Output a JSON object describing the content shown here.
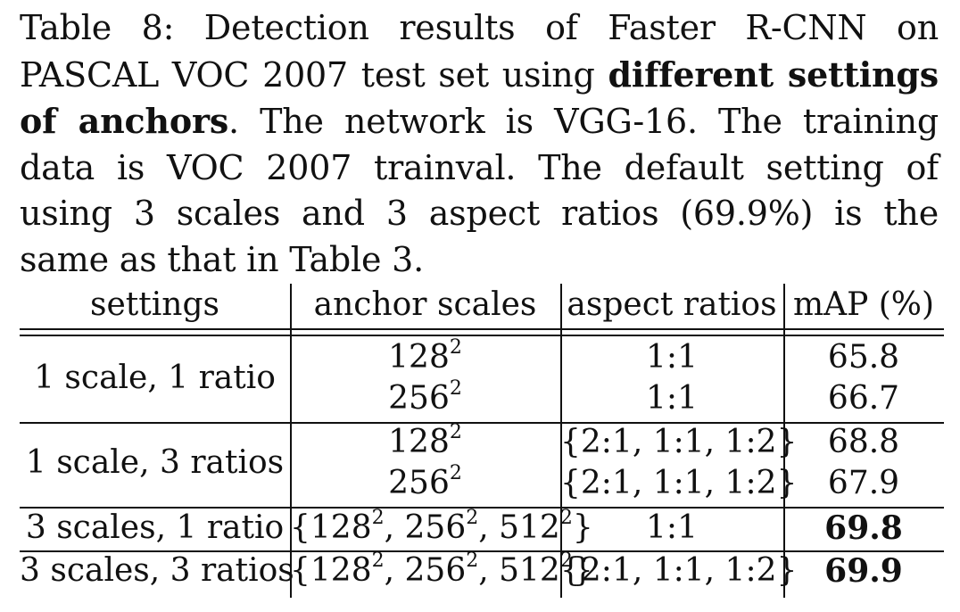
{
  "caption": {
    "label": "Table 8:",
    "text_before_bold": "Detection results of Faster R-CNN on PASCAL VOC 2007 test set using",
    "bold_text": "different settings of anchors",
    "text_after_bold": ". The network is VGG-16. The training data is VOC 2007 trainval. The default setting of using 3 scales and 3 aspect ratios (69.9%) is the same as that in Table 3."
  },
  "table": {
    "headers": [
      "settings",
      "anchor scales",
      "aspect ratios",
      "mAP (%)"
    ],
    "groups": [
      {
        "setting": "1 scale, 1 ratio",
        "rows": [
          {
            "scale_base": "128",
            "scale_exp": "2",
            "ratio": "1:1",
            "map": "65.8"
          },
          {
            "scale_base": "256",
            "scale_exp": "2",
            "ratio": "1:1",
            "map": "66.7"
          }
        ]
      },
      {
        "setting": "1 scale, 3 ratios",
        "rows": [
          {
            "scale_base": "128",
            "scale_exp": "2",
            "ratio": "{2:1, 1:1, 1:2}",
            "map": "68.8"
          },
          {
            "scale_base": "256",
            "scale_exp": "2",
            "ratio": "{2:1, 1:1, 1:2}",
            "map": "67.9"
          }
        ]
      },
      {
        "setting": "3 scales, 1 ratio",
        "rows": [
          {
            "scale_set": [
              "128",
              "256",
              "512"
            ],
            "scale_exp": "2",
            "ratio": "1:1",
            "map": "69.8",
            "bold": true
          }
        ]
      },
      {
        "setting": "3 scales, 3 ratios",
        "rows": [
          {
            "scale_set": [
              "128",
              "256",
              "512"
            ],
            "scale_exp": "2",
            "ratio": "{2:1, 1:1, 1:2}",
            "map": "69.9",
            "bold": true
          }
        ]
      }
    ]
  }
}
